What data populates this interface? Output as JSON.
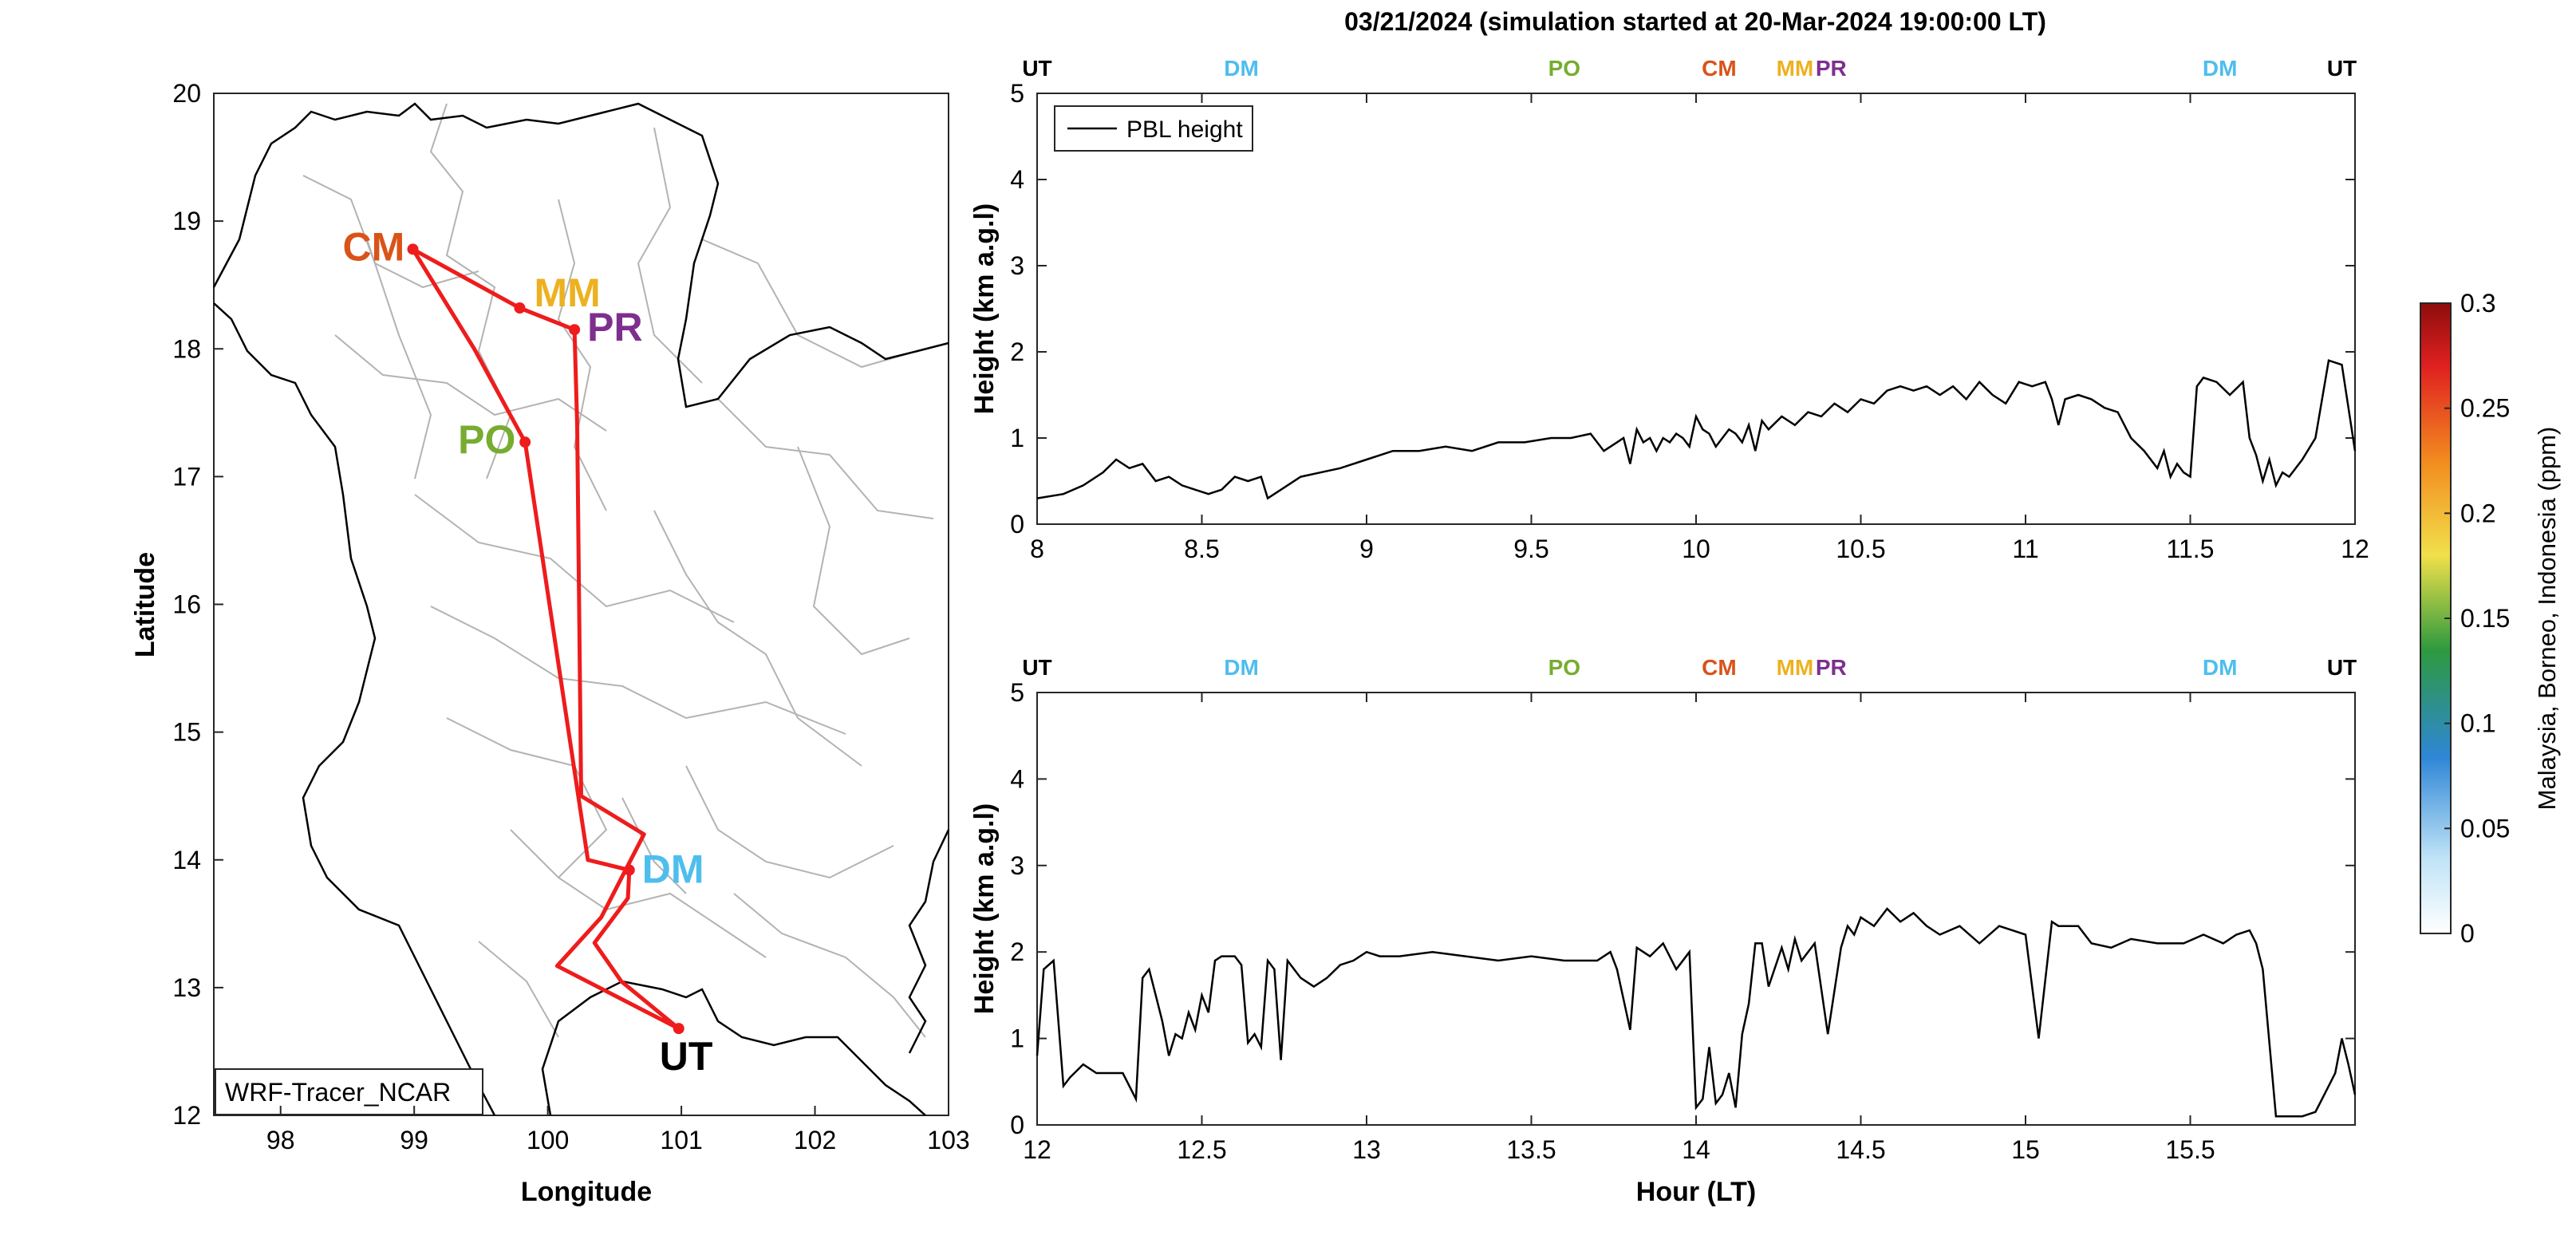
{
  "figure": {
    "title": "03/21/2024 (simulation started at 20-Mar-2024 19:00:00 LT)"
  },
  "map": {
    "xlabel": "Longitude",
    "ylabel": "Latitude",
    "xticks": [
      "98",
      "99",
      "100",
      "101",
      "102",
      "103"
    ],
    "yticks": [
      "12",
      "13",
      "14",
      "15",
      "16",
      "17",
      "18",
      "19",
      "20"
    ],
    "xlim": [
      97.5,
      103
    ],
    "ylim": [
      12,
      20
    ],
    "model_label": "WRF-Tracer_NCAR",
    "route_color": "#ee1c1c",
    "stations": [
      {
        "code": "CM",
        "lon": 98.99,
        "lat": 18.78,
        "color": "#d95319"
      },
      {
        "code": "MM",
        "lon": 99.79,
        "lat": 18.32,
        "color": "#edb120"
      },
      {
        "code": "PR",
        "lon": 100.2,
        "lat": 18.15,
        "color": "#7e2f8e"
      },
      {
        "code": "PO",
        "lon": 99.83,
        "lat": 17.27,
        "color": "#77ac30"
      },
      {
        "code": "DM",
        "lon": 100.61,
        "lat": 13.92,
        "color": "#4dbeee"
      },
      {
        "code": "UT",
        "lon": 100.98,
        "lat": 12.68,
        "color": "#000000"
      }
    ]
  },
  "colorbar": {
    "label": "Malaysia, Borneo, Indonesia (ppm)",
    "ticks": [
      "0",
      "0.05",
      "0.1",
      "0.15",
      "0.2",
      "0.25",
      "0.3"
    ],
    "range": [
      0,
      0.3
    ]
  },
  "chart_data": [
    {
      "type": "line",
      "xlim": [
        8,
        12
      ],
      "ylim": [
        0,
        5
      ],
      "xticks": [
        "8",
        "8.5",
        "9",
        "9.5",
        "10",
        "10.5",
        "11",
        "11.5",
        "12"
      ],
      "yticks": [
        "0",
        "1",
        "2",
        "3",
        "4",
        "5"
      ],
      "xlabel": "",
      "ylabel": "Height (km a.g.l)",
      "legend": "PBL height",
      "legend_position": "top-left",
      "top_markers": [
        {
          "label": "UT",
          "x": 8.0,
          "color": "#000000"
        },
        {
          "label": "DM",
          "x": 8.62,
          "color": "#4dbeee"
        },
        {
          "label": "PO",
          "x": 9.6,
          "color": "#77ac30"
        },
        {
          "label": "CM",
          "x": 10.07,
          "color": "#d95319"
        },
        {
          "label": "MM",
          "x": 10.3,
          "color": "#edb120"
        },
        {
          "label": "PR",
          "x": 10.41,
          "color": "#7e2f8e"
        },
        {
          "label": "DM",
          "x": 11.59,
          "color": "#4dbeee"
        },
        {
          "label": "UT",
          "x": 11.96,
          "color": "#000000"
        }
      ],
      "series": [
        {
          "name": "PBL height",
          "x": [
            8.0,
            8.08,
            8.14,
            8.2,
            8.24,
            8.28,
            8.32,
            8.36,
            8.4,
            8.44,
            8.48,
            8.52,
            8.56,
            8.6,
            8.64,
            8.68,
            8.7,
            8.74,
            8.8,
            8.86,
            8.92,
            9.0,
            9.08,
            9.16,
            9.24,
            9.32,
            9.4,
            9.48,
            9.56,
            9.62,
            9.68,
            9.72,
            9.76,
            9.78,
            9.8,
            9.82,
            9.84,
            9.86,
            9.88,
            9.9,
            9.92,
            9.94,
            9.96,
            9.98,
            10.0,
            10.02,
            10.04,
            10.06,
            10.08,
            10.1,
            10.12,
            10.14,
            10.16,
            10.18,
            10.2,
            10.22,
            10.26,
            10.3,
            10.34,
            10.38,
            10.42,
            10.46,
            10.5,
            10.54,
            10.58,
            10.62,
            10.66,
            10.7,
            10.74,
            10.78,
            10.82,
            10.86,
            10.9,
            10.94,
            10.98,
            11.02,
            11.06,
            11.08,
            11.1,
            11.12,
            11.16,
            11.2,
            11.24,
            11.28,
            11.32,
            11.36,
            11.4,
            11.42,
            11.44,
            11.46,
            11.48,
            11.5,
            11.52,
            11.54,
            11.58,
            11.62,
            11.66,
            11.68,
            11.7,
            11.72,
            11.74,
            11.76,
            11.78,
            11.8,
            11.84,
            11.88,
            11.92,
            11.96,
            12.0
          ],
          "y": [
            0.3,
            0.35,
            0.45,
            0.6,
            0.75,
            0.65,
            0.7,
            0.5,
            0.55,
            0.45,
            0.4,
            0.35,
            0.4,
            0.55,
            0.5,
            0.55,
            0.3,
            0.4,
            0.55,
            0.6,
            0.65,
            0.75,
            0.85,
            0.85,
            0.9,
            0.85,
            0.95,
            0.95,
            1.0,
            1.0,
            1.05,
            0.85,
            0.95,
            1.0,
            0.7,
            1.1,
            0.95,
            1.0,
            0.85,
            1.0,
            0.95,
            1.05,
            1.0,
            0.9,
            1.25,
            1.1,
            1.05,
            0.9,
            1.0,
            1.1,
            1.05,
            0.95,
            1.15,
            0.85,
            1.2,
            1.1,
            1.25,
            1.15,
            1.3,
            1.25,
            1.4,
            1.3,
            1.45,
            1.4,
            1.55,
            1.6,
            1.55,
            1.6,
            1.5,
            1.6,
            1.45,
            1.65,
            1.5,
            1.4,
            1.65,
            1.6,
            1.65,
            1.45,
            1.15,
            1.45,
            1.5,
            1.45,
            1.35,
            1.3,
            1.0,
            0.85,
            0.65,
            0.85,
            0.55,
            0.7,
            0.6,
            0.55,
            1.6,
            1.7,
            1.65,
            1.5,
            1.65,
            1.0,
            0.8,
            0.5,
            0.75,
            0.45,
            0.6,
            0.55,
            0.75,
            1.0,
            1.9,
            1.85,
            0.85
          ]
        }
      ]
    },
    {
      "type": "line",
      "xlim": [
        12,
        16
      ],
      "ylim": [
        0,
        5
      ],
      "xticks": [
        "12",
        "12.5",
        "13",
        "13.5",
        "14",
        "14.5",
        "15",
        "15.5"
      ],
      "yticks": [
        "0",
        "1",
        "2",
        "3",
        "4",
        "5"
      ],
      "xlabel": "Hour (LT)",
      "ylabel": "Height (km a.g.l)",
      "top_markers": [
        {
          "label": "UT",
          "x": 12.0,
          "color": "#000000"
        },
        {
          "label": "DM",
          "x": 12.62,
          "color": "#4dbeee"
        },
        {
          "label": "PO",
          "x": 13.6,
          "color": "#77ac30"
        },
        {
          "label": "CM",
          "x": 14.07,
          "color": "#d95319"
        },
        {
          "label": "MM",
          "x": 14.3,
          "color": "#edb120"
        },
        {
          "label": "PR",
          "x": 14.41,
          "color": "#7e2f8e"
        },
        {
          "label": "DM",
          "x": 15.59,
          "color": "#4dbeee"
        },
        {
          "label": "UT",
          "x": 15.96,
          "color": "#000000"
        }
      ],
      "series": [
        {
          "name": "PBL height",
          "x": [
            12.0,
            12.02,
            12.05,
            12.08,
            12.1,
            12.14,
            12.18,
            12.22,
            12.26,
            12.3,
            12.32,
            12.34,
            12.36,
            12.38,
            12.4,
            12.42,
            12.44,
            12.46,
            12.48,
            12.5,
            12.52,
            12.54,
            12.56,
            12.58,
            12.6,
            12.62,
            12.64,
            12.66,
            12.68,
            12.7,
            12.72,
            12.74,
            12.76,
            12.8,
            12.84,
            12.88,
            12.92,
            12.96,
            13.0,
            13.04,
            13.1,
            13.2,
            13.3,
            13.4,
            13.5,
            13.6,
            13.7,
            13.74,
            13.76,
            13.8,
            13.82,
            13.86,
            13.9,
            13.94,
            13.98,
            14.0,
            14.02,
            14.04,
            14.06,
            14.08,
            14.1,
            14.12,
            14.14,
            14.16,
            14.18,
            14.2,
            14.22,
            14.26,
            14.28,
            14.3,
            14.32,
            14.36,
            14.4,
            14.44,
            14.46,
            14.48,
            14.5,
            14.54,
            14.58,
            14.62,
            14.66,
            14.7,
            14.74,
            14.8,
            14.86,
            14.92,
            14.96,
            15.0,
            15.04,
            15.08,
            15.1,
            15.12,
            15.16,
            15.2,
            15.26,
            15.32,
            15.4,
            15.48,
            15.54,
            15.6,
            15.64,
            15.68,
            15.7,
            15.72,
            15.76,
            15.8,
            15.84,
            15.88,
            15.9,
            15.92,
            15.94,
            15.96,
            15.98,
            16.0
          ],
          "y": [
            0.8,
            1.8,
            1.9,
            0.45,
            0.55,
            0.7,
            0.6,
            0.6,
            0.6,
            0.3,
            1.7,
            1.8,
            1.5,
            1.2,
            0.8,
            1.05,
            1.0,
            1.3,
            1.1,
            1.5,
            1.3,
            1.9,
            1.95,
            1.95,
            1.95,
            1.85,
            0.95,
            1.05,
            0.9,
            1.9,
            1.8,
            0.75,
            1.9,
            1.7,
            1.6,
            1.7,
            1.85,
            1.9,
            2.0,
            1.95,
            1.95,
            2.0,
            1.95,
            1.9,
            1.95,
            1.9,
            1.9,
            2.0,
            1.8,
            1.1,
            2.05,
            1.95,
            2.1,
            1.8,
            2.0,
            0.2,
            0.3,
            0.9,
            0.25,
            0.35,
            0.6,
            0.2,
            1.05,
            1.4,
            2.1,
            2.1,
            1.6,
            2.05,
            1.8,
            2.15,
            1.9,
            2.1,
            1.05,
            2.05,
            2.3,
            2.2,
            2.4,
            2.3,
            2.5,
            2.35,
            2.45,
            2.3,
            2.2,
            2.3,
            2.1,
            2.3,
            2.25,
            2.2,
            1.0,
            2.35,
            2.3,
            2.3,
            2.3,
            2.1,
            2.05,
            2.15,
            2.1,
            2.1,
            2.2,
            2.1,
            2.2,
            2.25,
            2.1,
            1.8,
            0.1,
            0.1,
            0.1,
            0.15,
            0.3,
            0.45,
            0.6,
            1.0,
            0.7,
            0.35
          ]
        }
      ]
    }
  ]
}
